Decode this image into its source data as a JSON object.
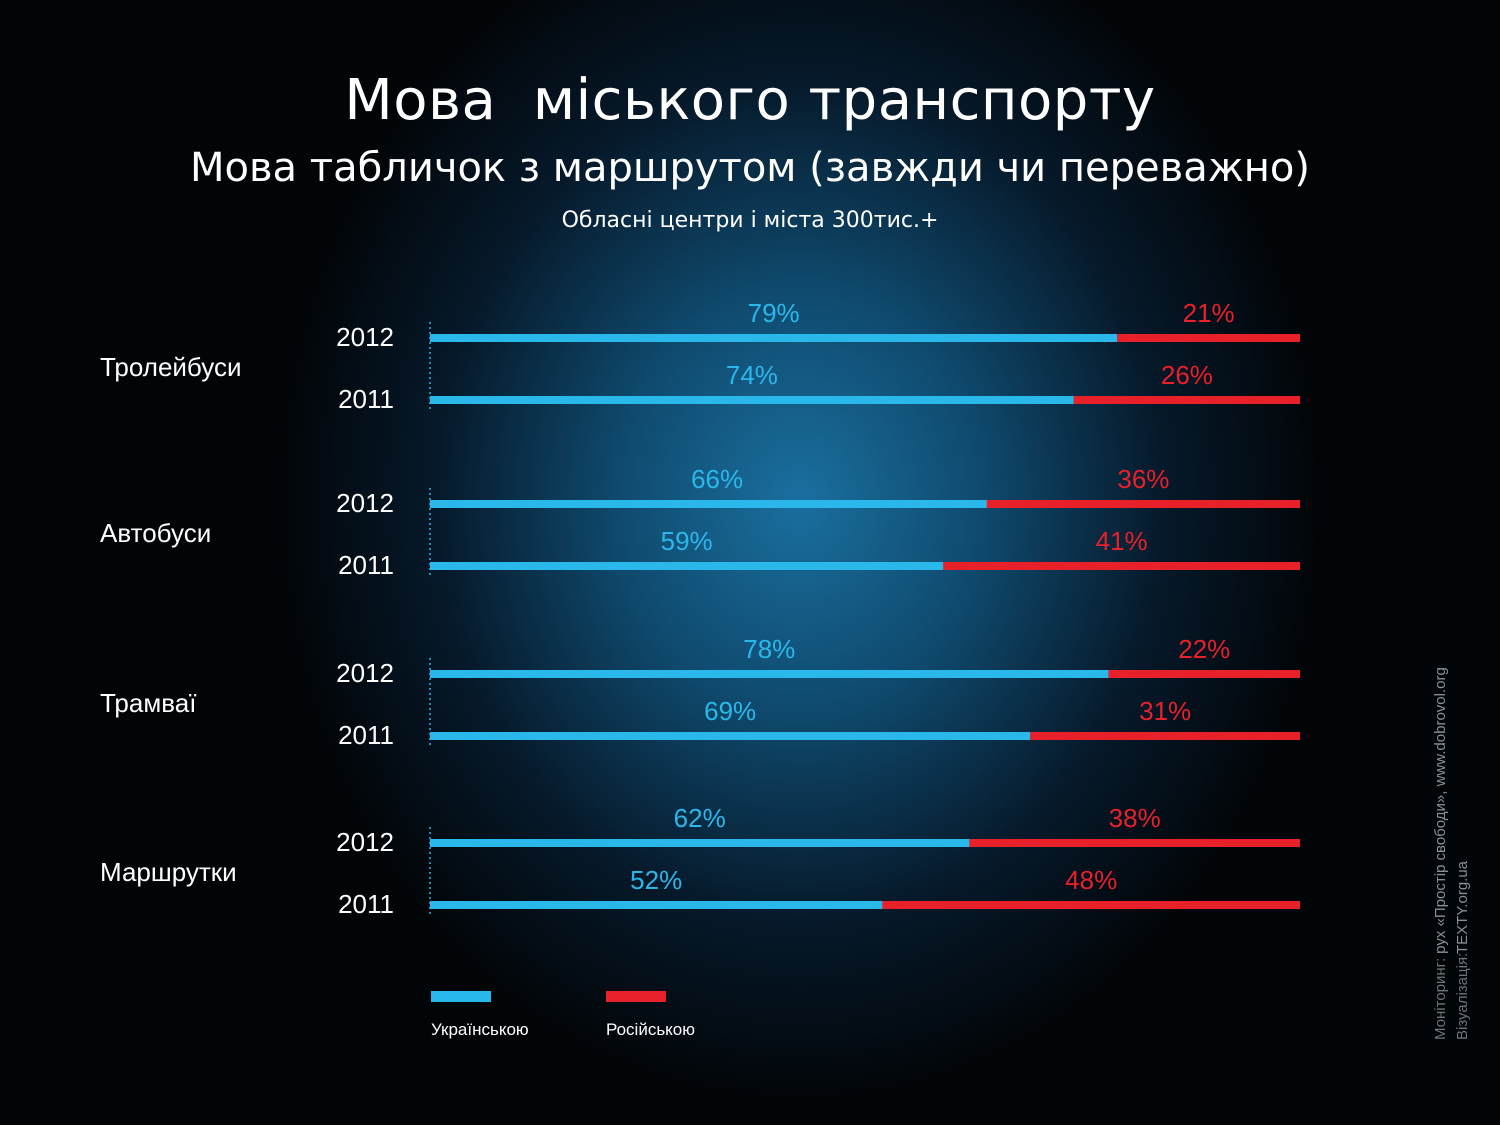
{
  "title": "Мова  міського транспорту",
  "subtitle": "Мова табличок з маршрутом (завжди чи переважно)",
  "subsubtitle": "Обласні центри і міста 300тис.+",
  "chart_data": {
    "type": "bar",
    "orientation": "horizontal-stacked-100",
    "categories": [
      "Тролейбуси",
      "Автобуси",
      "Трамваї",
      "Маршрутки"
    ],
    "years": [
      "2012",
      "2011"
    ],
    "series": [
      {
        "name": "Українською",
        "color": "#2ab8ea",
        "values": {
          "Тролейбуси": {
            "2012": 79,
            "2011": 74
          },
          "Автобуси": {
            "2012": 66,
            "2011": 59
          },
          "Трамваї": {
            "2012": 78,
            "2011": 69
          },
          "Маршрутки": {
            "2012": 62,
            "2011": 52
          }
        }
      },
      {
        "name": "Російською",
        "color": "#e8202a",
        "values": {
          "Тролейбуси": {
            "2012": 21,
            "2011": 26
          },
          "Автобуси": {
            "2012": 36,
            "2011": 41
          },
          "Трамваї": {
            "2012": 22,
            "2011": 31
          },
          "Маршрутки": {
            "2012": 38,
            "2011": 48
          }
        }
      }
    ],
    "value_suffix": "%",
    "xlim": [
      0,
      100
    ],
    "legend_position": "bottom-left"
  },
  "legend": [
    {
      "label": "Українською",
      "color": "#2ab8ea"
    },
    {
      "label": "Російською",
      "color": "#e8202a"
    }
  ],
  "credits": {
    "monitoring_label": "Моніторинг:",
    "monitoring_value": "рух «Простір свободи», www.dobrovol.org",
    "visualization_label": "Візуалізація:",
    "visualization_value": "TEXTY.org.ua"
  }
}
